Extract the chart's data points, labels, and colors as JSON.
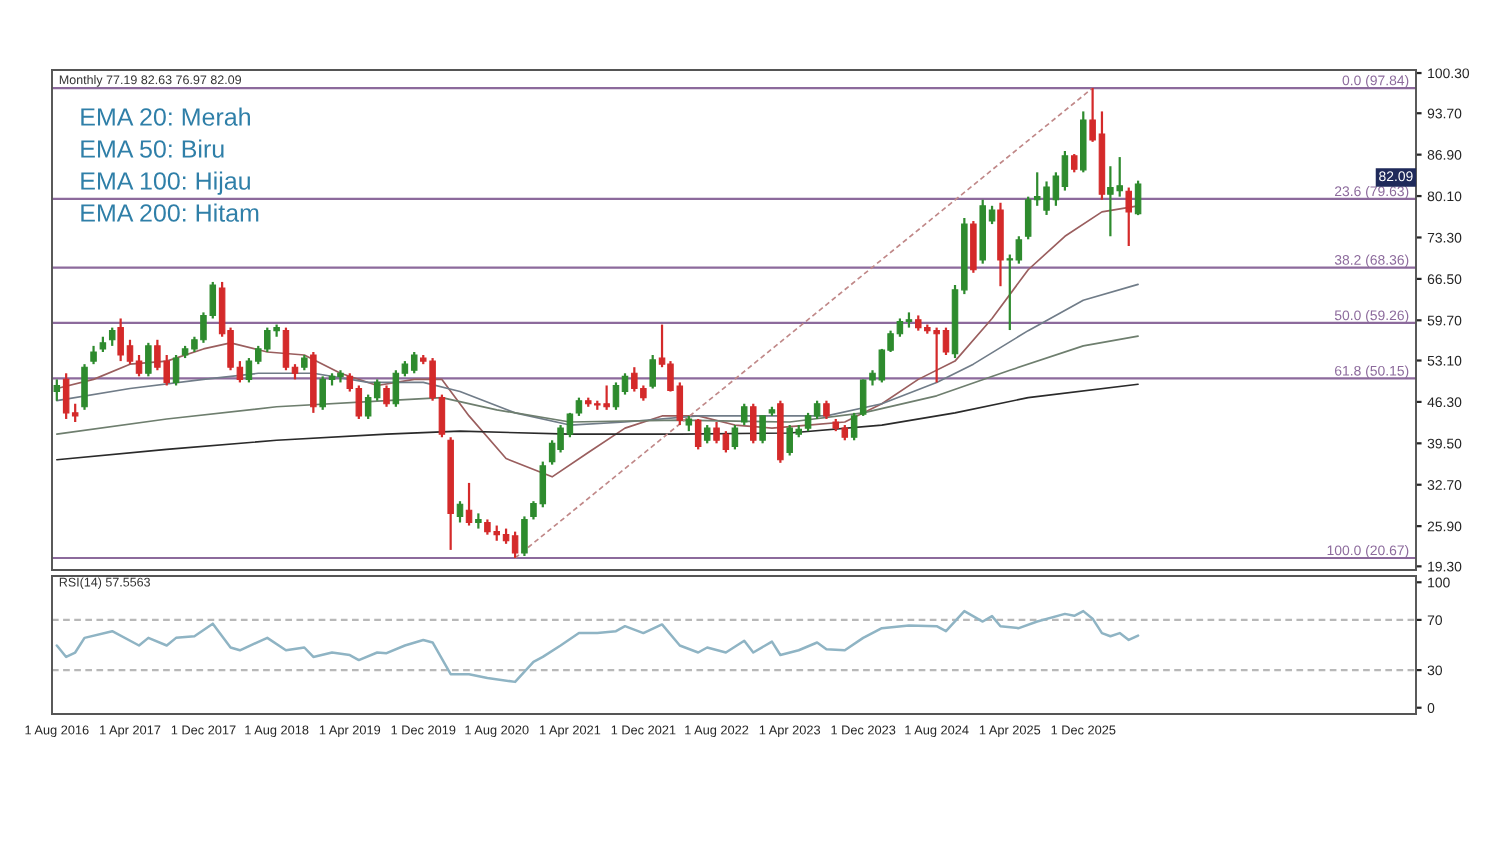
{
  "chart_data": [
    {
      "type": "candlestick",
      "title": "Monthly 77.19 82.63 76.97 82.09",
      "x": [
        "2016-08",
        "2016-09",
        "2016-10",
        "2016-11",
        "2016-12",
        "2017-01",
        "2017-02",
        "2017-03",
        "2017-04",
        "2017-05",
        "2017-06",
        "2017-07",
        "2017-08",
        "2017-09",
        "2017-10",
        "2017-11",
        "2017-12",
        "2018-01",
        "2018-02",
        "2018-03",
        "2018-04",
        "2018-05",
        "2018-06",
        "2018-07",
        "2018-08",
        "2018-09",
        "2018-10",
        "2018-11",
        "2018-12",
        "2019-01",
        "2019-02",
        "2019-03",
        "2019-04",
        "2019-05",
        "2019-06",
        "2019-07",
        "2019-08",
        "2019-09",
        "2019-10",
        "2019-11",
        "2019-12",
        "2020-01",
        "2020-02",
        "2020-03",
        "2020-04",
        "2020-05",
        "2020-06",
        "2020-07",
        "2020-08",
        "2020-09",
        "2020-10",
        "2020-11",
        "2020-12",
        "2021-01",
        "2021-02",
        "2021-03",
        "2021-04",
        "2021-05",
        "2021-06",
        "2021-07",
        "2021-08",
        "2021-09",
        "2021-10",
        "2021-11",
        "2021-12",
        "2022-01",
        "2022-02",
        "2022-03",
        "2022-04",
        "2022-05",
        "2022-06",
        "2022-07",
        "2022-08",
        "2022-09",
        "2022-10",
        "2022-11",
        "2022-12",
        "2023-01",
        "2023-02",
        "2023-03",
        "2023-04",
        "2023-05",
        "2023-06",
        "2023-07",
        "2023-08",
        "2023-09",
        "2023-10",
        "2023-11",
        "2023-12",
        "2024-01",
        "2024-02",
        "2024-03",
        "2024-04",
        "2024-05",
        "2024-06",
        "2024-07",
        "2024-08",
        "2024-09",
        "2024-10",
        "2024-11",
        "2024-12",
        "2025-01",
        "2025-02",
        "2025-03",
        "2025-04",
        "2025-05",
        "2025-06",
        "2025-07",
        "2025-08",
        "2025-09",
        "2025-10",
        "2025-11",
        "2025-12",
        "2026-01",
        "2026-02",
        "2026-03",
        "2026-04",
        "2026-05",
        "2026-06"
      ],
      "ohlc": [
        [
          48,
          50,
          46.5,
          49
        ],
        [
          50,
          51,
          43.5,
          44.5
        ],
        [
          44.5,
          46,
          43,
          44
        ],
        [
          45.5,
          52.5,
          45,
          52
        ],
        [
          53,
          55.5,
          52.5,
          54.5
        ],
        [
          55,
          57,
          54.5,
          56
        ],
        [
          56.5,
          58.5,
          55.5,
          58
        ],
        [
          58.5,
          60,
          53,
          54
        ],
        [
          55.5,
          56.5,
          52.5,
          53
        ],
        [
          53,
          54,
          50.5,
          51
        ],
        [
          51,
          56,
          50.5,
          55.5
        ],
        [
          55.5,
          56.5,
          51.5,
          52
        ],
        [
          53,
          54,
          49,
          49.5
        ],
        [
          49.5,
          54,
          49,
          53.5
        ],
        [
          54,
          55.5,
          53.5,
          55
        ],
        [
          55,
          57,
          54.5,
          56.5
        ],
        [
          56.5,
          61,
          56,
          60.5
        ],
        [
          60.5,
          66,
          60,
          65.5
        ],
        [
          65,
          66,
          57,
          57.5
        ],
        [
          58,
          58.5,
          51.5,
          52
        ],
        [
          52,
          53,
          49.5,
          50
        ],
        [
          50,
          53.5,
          49.5,
          53
        ],
        [
          53,
          55.5,
          52.5,
          55
        ],
        [
          55,
          58.5,
          54.5,
          58
        ],
        [
          58,
          59,
          57,
          58.5
        ],
        [
          58,
          58.5,
          51.5,
          52
        ],
        [
          52,
          52.5,
          50,
          51
        ],
        [
          52,
          54,
          51.5,
          53.5
        ],
        [
          54,
          54.5,
          44.5,
          45.5
        ],
        [
          45.5,
          50.5,
          45,
          50
        ],
        [
          50,
          51,
          49,
          50.5
        ],
        [
          50.5,
          51.5,
          49.5,
          51
        ],
        [
          50.5,
          51,
          48,
          48.5
        ],
        [
          48.5,
          49,
          43.5,
          44
        ],
        [
          44,
          47.5,
          43.5,
          47
        ],
        [
          47,
          50,
          46.5,
          49.5
        ],
        [
          48.5,
          49,
          45.5,
          46
        ],
        [
          46,
          51.5,
          45.5,
          51
        ],
        [
          51,
          53,
          50.5,
          52.5
        ],
        [
          51.5,
          54.5,
          51,
          54
        ],
        [
          53.5,
          54,
          52.5,
          53
        ],
        [
          53,
          53.5,
          46.5,
          47
        ],
        [
          47,
          47.5,
          40.5,
          41
        ],
        [
          40,
          40.5,
          22,
          28
        ],
        [
          27.5,
          30,
          26.5,
          29.5
        ],
        [
          28.5,
          33,
          26,
          26.5
        ],
        [
          26.5,
          28,
          25.5,
          27
        ],
        [
          26.5,
          27,
          24.5,
          25
        ],
        [
          25,
          26,
          23.5,
          24.5
        ],
        [
          24.5,
          25.5,
          23,
          23.5
        ],
        [
          24.3,
          25,
          20.67,
          21.5
        ],
        [
          21.5,
          27.5,
          21,
          27
        ],
        [
          27.5,
          30,
          27,
          29.6
        ],
        [
          29.6,
          36.5,
          29,
          35.8
        ],
        [
          36.5,
          40,
          36,
          39.5
        ],
        [
          38.5,
          42.5,
          38,
          42
        ],
        [
          41,
          44.5,
          40.5,
          44.3
        ],
        [
          44.5,
          47,
          44,
          46.5
        ],
        [
          46.5,
          47,
          45.5,
          46
        ],
        [
          46,
          46.5,
          45,
          45.8
        ],
        [
          46,
          49,
          45,
          45.5
        ],
        [
          45.5,
          49.5,
          45,
          49
        ],
        [
          48,
          51,
          47.5,
          50.5
        ],
        [
          51,
          52,
          48,
          48.5
        ],
        [
          48.5,
          49,
          46.5,
          47
        ],
        [
          48.9,
          54,
          48.5,
          53.2
        ],
        [
          53.5,
          59,
          52,
          52.5
        ],
        [
          52.5,
          53,
          48,
          48.2
        ],
        [
          48.9,
          49.5,
          42.5,
          43.3
        ],
        [
          42.5,
          44,
          41.5,
          43.5
        ],
        [
          43.3,
          43.5,
          38.5,
          39
        ],
        [
          40,
          42.5,
          39.5,
          42
        ],
        [
          42,
          43,
          39.5,
          40
        ],
        [
          41,
          41.5,
          38,
          38.5
        ],
        [
          39,
          42.5,
          38.5,
          42
        ],
        [
          43,
          46,
          42.5,
          45.5
        ],
        [
          45.5,
          46,
          39.5,
          40
        ],
        [
          40,
          44,
          39.5,
          44
        ],
        [
          44.5,
          45.5,
          44,
          45
        ],
        [
          46,
          46.5,
          36.3,
          36.8
        ],
        [
          38,
          42.5,
          37.5,
          42
        ],
        [
          41,
          42.5,
          40.5,
          41.8
        ],
        [
          42,
          44.5,
          41.5,
          44
        ],
        [
          44,
          46.5,
          43.5,
          46
        ],
        [
          46,
          46.5,
          43.5,
          44
        ],
        [
          43,
          43.5,
          41.5,
          42
        ],
        [
          42,
          42.5,
          40,
          40.5
        ],
        [
          40.5,
          44.5,
          40,
          44
        ],
        [
          44.3,
          50,
          44,
          49.9
        ],
        [
          49.9,
          51.5,
          49,
          51
        ],
        [
          49.9,
          55,
          49.5,
          54.8
        ],
        [
          54.8,
          58,
          54.5,
          57.5
        ],
        [
          57.5,
          60,
          57,
          59.5
        ],
        [
          59.5,
          61,
          58.5,
          59.8
        ],
        [
          59.8,
          60.5,
          58,
          58.5
        ],
        [
          58.5,
          59,
          57.5,
          58
        ],
        [
          58,
          58.5,
          49.5,
          57.5
        ],
        [
          58,
          58.5,
          54,
          54.5
        ],
        [
          54.2,
          65.5,
          53.5,
          64.7
        ],
        [
          64.7,
          76.5,
          64,
          75.5
        ],
        [
          75.5,
          76,
          67.5,
          68
        ],
        [
          69.6,
          79.5,
          69,
          78.5
        ],
        [
          76,
          78.5,
          75.5,
          77.8
        ],
        [
          77.8,
          79,
          65.3,
          69.6
        ],
        [
          69.6,
          70.5,
          58.1,
          69.8
        ],
        [
          69.6,
          73.5,
          69,
          72.9
        ],
        [
          73.5,
          80,
          73,
          79.5
        ],
        [
          79.5,
          84,
          78.5,
          80
        ],
        [
          77.8,
          82.5,
          77,
          81.6
        ],
        [
          79.5,
          84,
          78.5,
          83.4
        ],
        [
          81.7,
          87.5,
          81,
          86.7
        ],
        [
          86.7,
          87,
          84,
          84.5
        ],
        [
          84.4,
          94,
          84,
          92.6
        ],
        [
          92.6,
          97.84,
          89,
          89.3
        ],
        [
          90.3,
          94,
          79.5,
          80.4
        ],
        [
          80.4,
          85,
          73.5,
          81.5
        ],
        [
          81,
          86.5,
          80,
          81.8
        ],
        [
          80.9,
          81.5,
          71.9,
          77.5
        ],
        [
          77.19,
          82.63,
          76.97,
          82.09
        ]
      ],
      "series": [
        {
          "type": "line",
          "color": "#9a5e5e",
          "x": [
            "2016-08",
            "2016-12",
            "2017-04",
            "2017-08",
            "2017-12",
            "2018-03",
            "2018-07",
            "2018-11",
            "2019-03",
            "2019-07",
            "2019-11",
            "2020-02",
            "2020-05",
            "2020-09",
            "2021-02",
            "2021-06",
            "2021-10",
            "2022-02",
            "2022-06",
            "2022-10",
            "2023-02",
            "2023-06",
            "2023-10",
            "2024-02",
            "2024-06",
            "2024-10",
            "2025-02",
            "2025-06",
            "2025-10",
            "2026-02",
            "2026-06"
          ],
          "values": [
            48.5,
            50,
            52.5,
            53,
            55,
            56,
            54.5,
            54,
            51,
            49,
            50,
            50,
            44,
            37,
            34,
            38,
            42,
            44,
            44,
            42.5,
            42,
            42.5,
            43,
            46,
            50,
            53,
            60,
            68,
            73.5,
            77.5,
            78.5
          ]
        },
        {
          "type": "line",
          "color": "#707c88",
          "x": [
            "2016-08",
            "2017-04",
            "2017-12",
            "2018-06",
            "2018-12",
            "2019-06",
            "2019-12",
            "2020-04",
            "2020-10",
            "2021-04",
            "2021-10",
            "2022-06",
            "2023-02",
            "2023-08",
            "2024-02",
            "2024-08",
            "2024-12",
            "2025-06",
            "2025-12",
            "2026-06"
          ],
          "values": [
            46.5,
            48.5,
            50,
            51,
            51,
            49.5,
            49.5,
            48,
            44.5,
            42.5,
            43,
            44,
            44,
            44,
            46,
            49.5,
            52.5,
            58,
            63,
            65.6
          ]
        },
        {
          "type": "line",
          "color": "#6e7e6e",
          "x": [
            "2016-08",
            "2017-08",
            "2018-08",
            "2019-08",
            "2020-02",
            "2020-08",
            "2021-04",
            "2022-04",
            "2023-04",
            "2023-12",
            "2024-08",
            "2025-04",
            "2025-12",
            "2026-06"
          ],
          "values": [
            41,
            43.5,
            45.5,
            46.5,
            47,
            45,
            43,
            43.3,
            43,
            44.5,
            47.3,
            51.5,
            55.5,
            57.1
          ]
        },
        {
          "type": "line",
          "color": "#2a2a2a",
          "x": [
            "2016-08",
            "2017-08",
            "2018-08",
            "2019-08",
            "2020-04",
            "2021-04",
            "2022-04",
            "2023-04",
            "2024-02",
            "2024-10",
            "2025-06",
            "2026-06"
          ],
          "values": [
            36.8,
            38.5,
            40,
            41,
            41.5,
            41,
            41,
            41.2,
            42.5,
            44.5,
            47,
            49.2
          ]
        },
        {
          "type": "line",
          "color": "#c08888",
          "line_style": "dashed",
          "x": [
            "2020-10",
            "2026-01"
          ],
          "values": [
            20.67,
            97.84
          ]
        }
      ],
      "ref_lines": [
        {
          "axis": "y",
          "value": 97.84,
          "label": "0.0 (97.84)",
          "color": "#8c6a9c"
        },
        {
          "axis": "y",
          "value": 79.63,
          "label": "23.6 (79.63)",
          "color": "#8c6a9c"
        },
        {
          "axis": "y",
          "value": 68.36,
          "label": "38.2 (68.36)",
          "color": "#8c6a9c"
        },
        {
          "axis": "y",
          "value": 59.26,
          "label": "50.0 (59.26)",
          "color": "#8c6a9c"
        },
        {
          "axis": "y",
          "value": 50.15,
          "label": "61.8 (50.15)",
          "color": "#8c6a9c"
        },
        {
          "axis": "y",
          "value": 20.67,
          "label": "100.0 (20.67)",
          "color": "#8c6a9c"
        }
      ],
      "annotations": [
        "EMA 20: Merah",
        "EMA 50: Biru",
        "EMA 100: Hijau",
        "EMA 200: Hitam",
        "82.09"
      ],
      "xlim": [
        "2016-07-16",
        "2028-12-10"
      ],
      "ylim": [
        18.7,
        100.8
      ],
      "yticks": [
        {
          "value": 100.3,
          "label": "100.30"
        },
        {
          "value": 93.7,
          "label": "93.70"
        },
        {
          "value": 86.9,
          "label": "86.90"
        },
        {
          "value": 80.1,
          "label": "80.10"
        },
        {
          "value": 73.3,
          "label": "73.30"
        },
        {
          "value": 66.5,
          "label": "66.50"
        },
        {
          "value": 59.7,
          "label": "59.70"
        },
        {
          "value": 53.1,
          "label": "53.10"
        },
        {
          "value": 46.3,
          "label": "46.30"
        },
        {
          "value": 39.5,
          "label": "39.50"
        },
        {
          "value": 32.7,
          "label": "32.70"
        },
        {
          "value": 25.9,
          "label": "25.90"
        },
        {
          "value": 19.3,
          "label": "19.30"
        }
      ],
      "tick_labels": "y",
      "grid": false,
      "legend": false
    },
    {
      "type": "line",
      "title": "RSI(14) 57.5563",
      "series": [
        {
          "color": "#8fb4c4",
          "x": [
            "2016-08",
            "2016-09",
            "2016-10",
            "2016-11",
            "2017-02",
            "2017-05",
            "2017-06",
            "2017-08",
            "2017-09",
            "2017-11",
            "2018-01",
            "2018-03",
            "2018-04",
            "2018-07",
            "2018-09",
            "2018-11",
            "2018-12",
            "2019-02",
            "2019-04",
            "2019-05",
            "2019-07",
            "2019-08",
            "2019-10",
            "2019-12",
            "2020-01",
            "2020-03",
            "2020-05",
            "2020-07",
            "2020-10",
            "2020-12",
            "2021-01",
            "2021-03",
            "2021-05",
            "2021-07",
            "2021-09",
            "2021-10",
            "2021-12",
            "2022-02",
            "2022-04",
            "2022-06",
            "2022-07",
            "2022-09",
            "2022-11",
            "2022-12",
            "2023-02",
            "2023-03",
            "2023-05",
            "2023-07",
            "2023-08",
            "2023-10",
            "2023-12",
            "2024-02",
            "2024-05",
            "2024-08",
            "2024-09",
            "2024-11",
            "2025-01",
            "2025-02",
            "2025-03",
            "2025-05",
            "2025-07",
            "2025-10",
            "2025-11",
            "2025-12",
            "2026-01",
            "2026-02",
            "2026-03",
            "2026-04",
            "2026-05",
            "2026-06"
          ],
          "values": [
            49.6,
            40.5,
            44,
            55.7,
            61,
            49.6,
            55.7,
            49.6,
            55.7,
            57,
            67,
            48,
            45.8,
            55.7,
            45.8,
            48,
            40.5,
            44,
            42,
            38,
            44,
            43.5,
            49.6,
            54,
            52,
            26.7,
            26.7,
            23.7,
            20.6,
            36.6,
            40.5,
            49.6,
            59.5,
            59.5,
            61,
            65,
            59.5,
            66.4,
            49.6,
            44,
            48,
            44,
            53.4,
            44,
            52.7,
            42,
            45.8,
            52,
            46.6,
            45.8,
            55.7,
            63.4,
            65.6,
            65,
            61,
            77,
            68.7,
            73,
            65,
            63.4,
            68.7,
            74.8,
            73.3,
            77,
            71,
            59.5,
            57,
            59.5,
            54,
            57.56
          ]
        }
      ],
      "ref_lines": [
        {
          "axis": "y",
          "value": 30,
          "color": "#b8b8b8",
          "line_style": "dashed"
        },
        {
          "axis": "y",
          "value": 70,
          "color": "#b8b8b8",
          "line_style": "dashed"
        }
      ],
      "xlim": [
        "2016-07-16",
        "2028-12-10"
      ],
      "xticks": [
        {
          "value": "2016-08-01",
          "label": "1 Aug 2016"
        },
        {
          "value": "2017-04-01",
          "label": "1 Apr 2017"
        },
        {
          "value": "2017-12-01",
          "label": "1 Dec 2017"
        },
        {
          "value": "2018-08-01",
          "label": "1 Aug 2018"
        },
        {
          "value": "2019-04-01",
          "label": "1 Apr 2019"
        },
        {
          "value": "2019-12-01",
          "label": "1 Dec 2019"
        },
        {
          "value": "2020-08-01",
          "label": "1 Aug 2020"
        },
        {
          "value": "2021-04-01",
          "label": "1 Apr 2021"
        },
        {
          "value": "2021-12-01",
          "label": "1 Dec 2021"
        },
        {
          "value": "2022-08-01",
          "label": "1 Aug 2022"
        },
        {
          "value": "2023-04-01",
          "label": "1 Apr 2023"
        },
        {
          "value": "2023-12-01",
          "label": "1 Dec 2023"
        },
        {
          "value": "2024-08-01",
          "label": "1 Aug 2024"
        },
        {
          "value": "2025-04-01",
          "label": "1 Apr 2025"
        },
        {
          "value": "2025-12-01",
          "label": "1 Dec 2025"
        }
      ],
      "ylim": [
        -5,
        105
      ],
      "yticks": [
        0,
        30,
        70,
        100
      ],
      "grid": false,
      "legend": false
    }
  ]
}
